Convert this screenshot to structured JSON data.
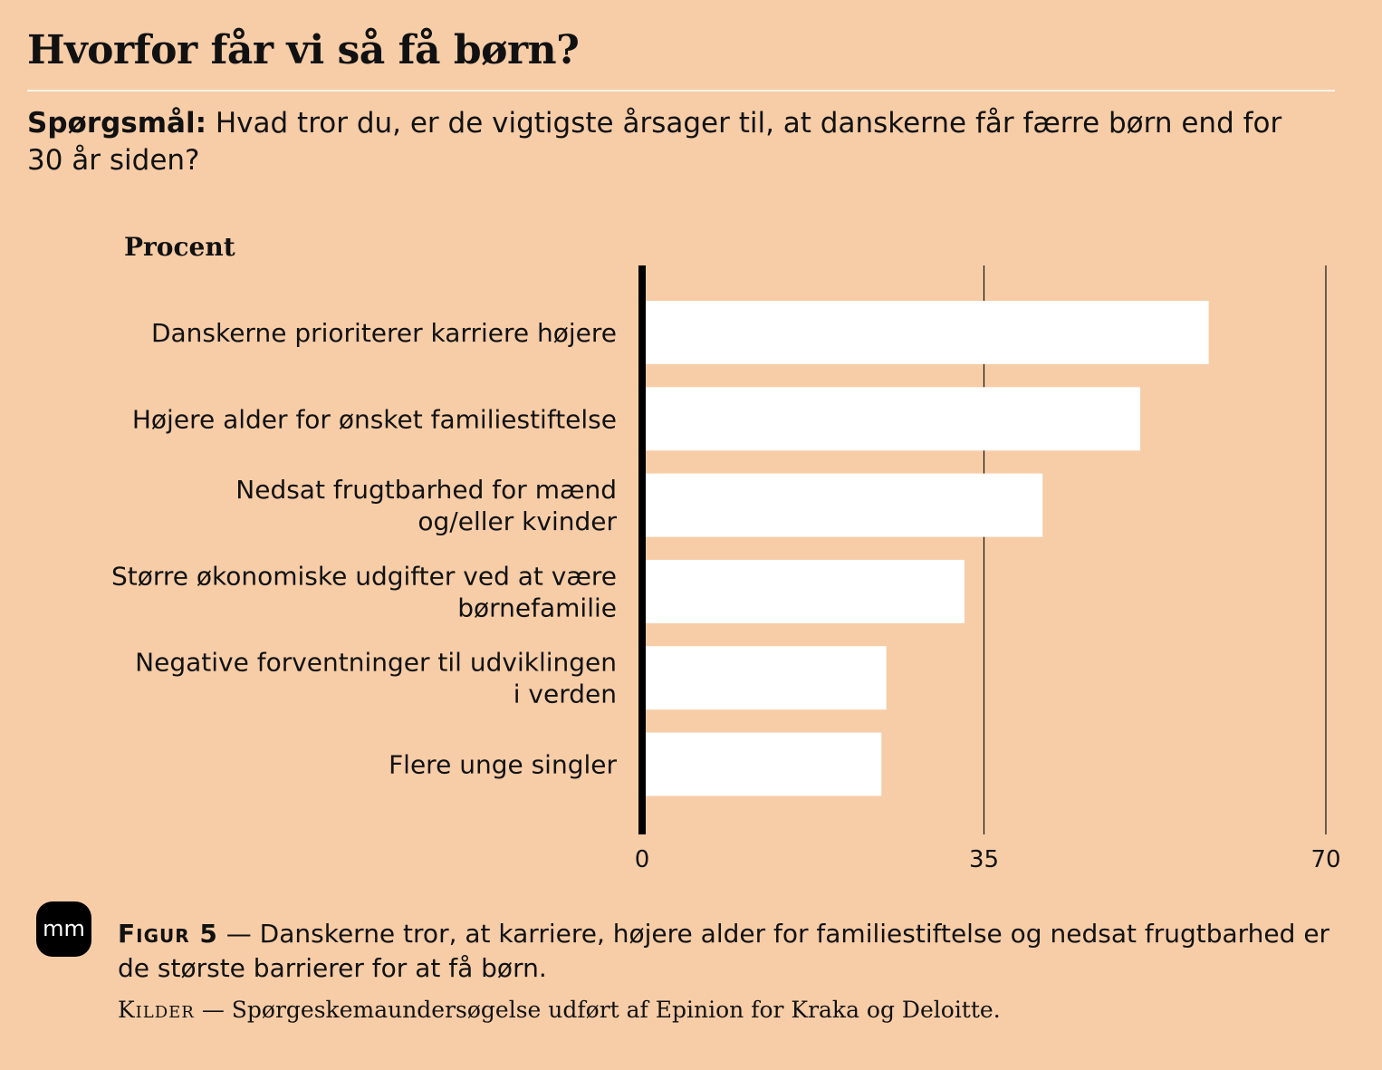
{
  "header": {
    "title": "Hvorfor får vi så få børn?",
    "question_lead": "Spørgsmål:",
    "question_text": "Hvad tror du, er de vigtigste årsager til, at danskerne får færre børn end for 30 år siden?"
  },
  "chart_data": {
    "type": "bar",
    "orientation": "horizontal",
    "unit_label": "Procent",
    "categories": [
      "Danskerne prioriterer karriere højere",
      "Højere alder for ønsket familiestiftelse",
      "Nedsat frugtbarhed for mænd og/eller kvinder",
      "Større økonomiske udgifter ved at være børnefamilie",
      "Negative forventninger til udviklingen i verden",
      "Flere unge singler"
    ],
    "category_lines": [
      [
        "Danskerne prioriterer karriere højere"
      ],
      [
        "Højere alder for ønsket familiestiftelse"
      ],
      [
        "Nedsat frugtbarhed for mænd",
        "og/eller kvinder"
      ],
      [
        "Større økonomiske udgifter ved at være",
        "børnefamilie"
      ],
      [
        "Negative forventninger til udviklingen",
        "i verden"
      ],
      [
        "Flere unge singler"
      ]
    ],
    "values": [
      58,
      51,
      41,
      33,
      25,
      24.5
    ],
    "xlim": [
      0,
      70
    ],
    "xticks": [
      0,
      35,
      70
    ],
    "grid": true,
    "legend": "none",
    "bar_color": "#ffffff",
    "background_color": "#f7cda7"
  },
  "footer": {
    "logo_text": "mm",
    "figure_label": "Figur 5",
    "figure_sep": "—",
    "figure_text": "Danskerne tror, at karriere, højere alder for familiestiftelse og nedsat frugtbarhed er de største barrierer for at få børn.",
    "source_label": "Kilder",
    "source_sep": "—",
    "source_text": "Spørgeskemaundersøgelse udført af Epinion for Kraka og Deloitte."
  }
}
